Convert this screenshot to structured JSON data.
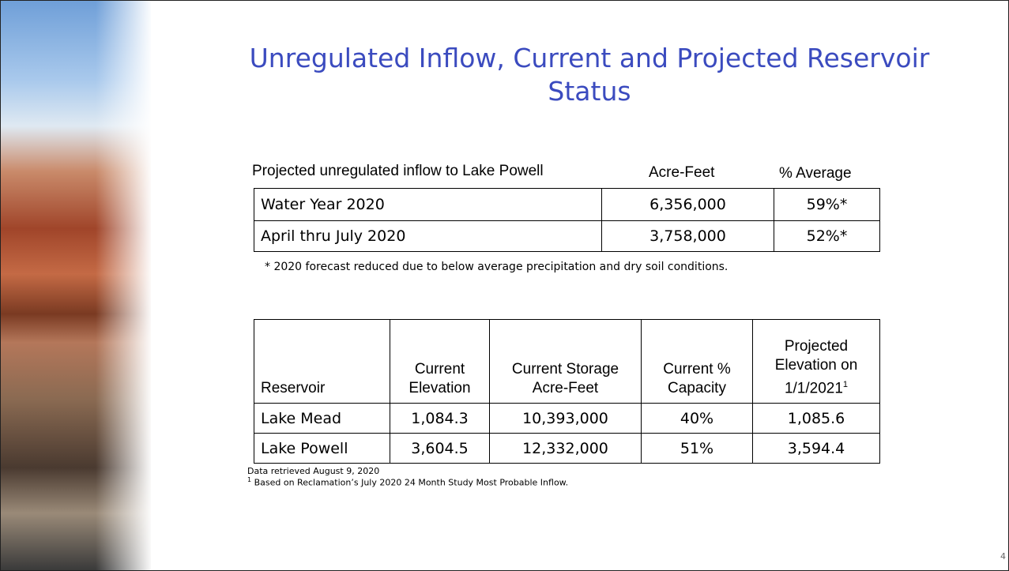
{
  "header": {
    "title": "Unregulated Inflow, Current and Projected Reservoir Status"
  },
  "inflow": {
    "headers": [
      "Projected unregulated inflow to Lake Powell",
      "Acre-Feet",
      "% Average"
    ],
    "rows": [
      [
        "Water Year 2020",
        "6,356,000",
        "59%*"
      ],
      [
        "April thru July 2020",
        "3,758,000",
        "52%*"
      ]
    ],
    "footnote": "* 2020 forecast reduced due to below average precipitation and dry soil conditions."
  },
  "reservoirs": {
    "headers": [
      "Reservoir",
      "Current Elevation",
      "Current Storage Acre-Feet",
      "Current % Capacity",
      "Projected Elevation on 1/1/2021"
    ],
    "header_superscript": "1",
    "rows": [
      [
        "Lake Mead",
        "1,084.3",
        "10,393,000",
        "40%",
        "1,085.6"
      ],
      [
        "Lake Powell",
        "3,604.5",
        "12,332,000",
        "51%",
        "3,594.4"
      ]
    ],
    "notes": [
      "Data retrieved August 9, 2020",
      "Based on Reclamation’s July 2020 24 Month Study Most Probable Inflow."
    ],
    "note_superscript": "1"
  },
  "footer": {
    "page_number": "4"
  }
}
